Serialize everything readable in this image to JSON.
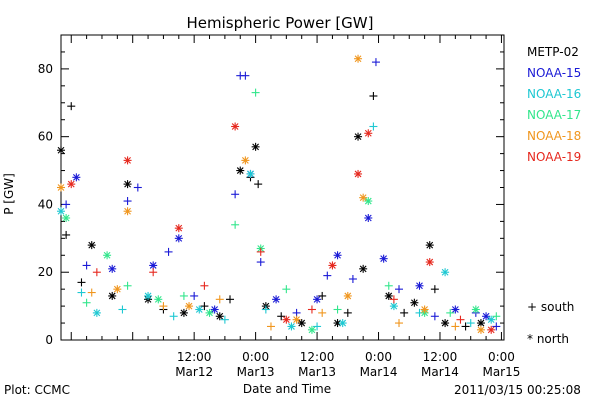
{
  "chart_data": {
    "type": "scatter",
    "title": "Hemispheric Power [GW]",
    "xlabel": "Date and Time",
    "ylabel": "P [GW]",
    "ylim": [
      0,
      90
    ],
    "xlim": [
      "2011-03-11 10:00",
      "2011-03-15 00:30"
    ],
    "yticks": [
      0,
      20,
      40,
      60,
      80
    ],
    "xticks": [
      {
        "time": "2011-03-12 12:00",
        "line1": "12:00",
        "line2": "Mar12"
      },
      {
        "time": "2011-03-13 00:00",
        "line1": "0:00",
        "line2": "Mar13"
      },
      {
        "time": "2011-03-13 12:00",
        "line1": "12:00",
        "line2": "Mar13"
      },
      {
        "time": "2011-03-14 00:00",
        "line1": "0:00",
        "line2": "Mar14"
      },
      {
        "time": "2011-03-14 12:00",
        "line1": "12:00",
        "line2": "Mar14"
      },
      {
        "time": "2011-03-15 00:00",
        "line1": "0:00",
        "line2": "Mar15"
      }
    ],
    "marker_legend": {
      "south": "+ south",
      "north": "* north"
    },
    "series": [
      {
        "name": "METP-02",
        "color": "#000000",
        "points": [
          {
            "t": "2011-03-11 10:00",
            "v": 56,
            "m": "north"
          },
          {
            "t": "2011-03-11 11:00",
            "v": 31,
            "m": "south"
          },
          {
            "t": "2011-03-11 12:00",
            "v": 69,
            "m": "south"
          },
          {
            "t": "2011-03-11 14:00",
            "v": 17,
            "m": "south"
          },
          {
            "t": "2011-03-11 16:00",
            "v": 28,
            "m": "north"
          },
          {
            "t": "2011-03-11 20:00",
            "v": 13,
            "m": "north"
          },
          {
            "t": "2011-03-11 23:00",
            "v": 46,
            "m": "north"
          },
          {
            "t": "2011-03-12 03:00",
            "v": 12,
            "m": "north"
          },
          {
            "t": "2011-03-12 06:00",
            "v": 9,
            "m": "south"
          },
          {
            "t": "2011-03-12 10:00",
            "v": 8,
            "m": "north"
          },
          {
            "t": "2011-03-12 14:00",
            "v": 10,
            "m": "south"
          },
          {
            "t": "2011-03-12 17:00",
            "v": 7,
            "m": "north"
          },
          {
            "t": "2011-03-12 19:00",
            "v": 12,
            "m": "south"
          },
          {
            "t": "2011-03-12 21:00",
            "v": 50,
            "m": "north"
          },
          {
            "t": "2011-03-12 23:00",
            "v": 48,
            "m": "south"
          },
          {
            "t": "2011-03-13 00:00",
            "v": 57,
            "m": "north"
          },
          {
            "t": "2011-03-13 00:30",
            "v": 46,
            "m": "south"
          },
          {
            "t": "2011-03-13 02:00",
            "v": 10,
            "m": "north"
          },
          {
            "t": "2011-03-13 05:00",
            "v": 7,
            "m": "south"
          },
          {
            "t": "2011-03-13 09:00",
            "v": 5,
            "m": "north"
          },
          {
            "t": "2011-03-13 13:00",
            "v": 13,
            "m": "south"
          },
          {
            "t": "2011-03-13 16:00",
            "v": 5,
            "m": "north"
          },
          {
            "t": "2011-03-13 18:00",
            "v": 8,
            "m": "south"
          },
          {
            "t": "2011-03-13 20:00",
            "v": 60,
            "m": "north"
          },
          {
            "t": "2011-03-13 21:00",
            "v": 21,
            "m": "north"
          },
          {
            "t": "2011-03-13 23:00",
            "v": 72,
            "m": "south"
          },
          {
            "t": "2011-03-14 02:00",
            "v": 13,
            "m": "north"
          },
          {
            "t": "2011-03-14 05:00",
            "v": 8,
            "m": "south"
          },
          {
            "t": "2011-03-14 07:00",
            "v": 11,
            "m": "north"
          },
          {
            "t": "2011-03-14 10:00",
            "v": 28,
            "m": "north"
          },
          {
            "t": "2011-03-14 11:00",
            "v": 15,
            "m": "south"
          },
          {
            "t": "2011-03-14 13:00",
            "v": 5,
            "m": "north"
          },
          {
            "t": "2011-03-14 17:00",
            "v": 4,
            "m": "south"
          },
          {
            "t": "2011-03-14 20:00",
            "v": 5,
            "m": "north"
          }
        ]
      },
      {
        "name": "NOAA-15",
        "color": "#1a1ad6",
        "points": [
          {
            "t": "2011-03-11 11:00",
            "v": 40,
            "m": "south"
          },
          {
            "t": "2011-03-11 13:00",
            "v": 48,
            "m": "north"
          },
          {
            "t": "2011-03-11 15:00",
            "v": 22,
            "m": "south"
          },
          {
            "t": "2011-03-11 20:00",
            "v": 21,
            "m": "north"
          },
          {
            "t": "2011-03-11 23:00",
            "v": 41,
            "m": "south"
          },
          {
            "t": "2011-03-12 01:00",
            "v": 45,
            "m": "south"
          },
          {
            "t": "2011-03-12 04:00",
            "v": 22,
            "m": "north"
          },
          {
            "t": "2011-03-12 07:00",
            "v": 26,
            "m": "south"
          },
          {
            "t": "2011-03-12 09:00",
            "v": 30,
            "m": "north"
          },
          {
            "t": "2011-03-12 12:00",
            "v": 13,
            "m": "south"
          },
          {
            "t": "2011-03-12 16:00",
            "v": 9,
            "m": "north"
          },
          {
            "t": "2011-03-12 20:00",
            "v": 43,
            "m": "south"
          },
          {
            "t": "2011-03-12 21:00",
            "v": 78,
            "m": "south"
          },
          {
            "t": "2011-03-12 22:00",
            "v": 78,
            "m": "south"
          },
          {
            "t": "2011-03-12 23:00",
            "v": 49,
            "m": "north"
          },
          {
            "t": "2011-03-13 01:00",
            "v": 23,
            "m": "south"
          },
          {
            "t": "2011-03-13 04:00",
            "v": 12,
            "m": "north"
          },
          {
            "t": "2011-03-13 08:00",
            "v": 8,
            "m": "south"
          },
          {
            "t": "2011-03-13 12:00",
            "v": 12,
            "m": "north"
          },
          {
            "t": "2011-03-13 14:00",
            "v": 19,
            "m": "south"
          },
          {
            "t": "2011-03-13 16:00",
            "v": 25,
            "m": "north"
          },
          {
            "t": "2011-03-13 19:00",
            "v": 18,
            "m": "south"
          },
          {
            "t": "2011-03-13 22:00",
            "v": 36,
            "m": "north"
          },
          {
            "t": "2011-03-13 23:30",
            "v": 82,
            "m": "south"
          },
          {
            "t": "2011-03-14 01:00",
            "v": 24,
            "m": "north"
          },
          {
            "t": "2011-03-14 04:00",
            "v": 15,
            "m": "south"
          },
          {
            "t": "2011-03-14 08:00",
            "v": 16,
            "m": "north"
          },
          {
            "t": "2011-03-14 11:00",
            "v": 7,
            "m": "south"
          },
          {
            "t": "2011-03-14 15:00",
            "v": 9,
            "m": "north"
          },
          {
            "t": "2011-03-14 19:00",
            "v": 8,
            "m": "south"
          },
          {
            "t": "2011-03-14 21:00",
            "v": 7,
            "m": "north"
          },
          {
            "t": "2011-03-14 23:00",
            "v": 4,
            "m": "south"
          }
        ]
      },
      {
        "name": "NOAA-16",
        "color": "#1ec8d2",
        "points": [
          {
            "t": "2011-03-11 10:00",
            "v": 38,
            "m": "north"
          },
          {
            "t": "2011-03-11 14:00",
            "v": 14,
            "m": "south"
          },
          {
            "t": "2011-03-11 17:00",
            "v": 8,
            "m": "north"
          },
          {
            "t": "2011-03-11 22:00",
            "v": 9,
            "m": "south"
          },
          {
            "t": "2011-03-12 03:00",
            "v": 13,
            "m": "north"
          },
          {
            "t": "2011-03-12 08:00",
            "v": 7,
            "m": "south"
          },
          {
            "t": "2011-03-12 13:00",
            "v": 9,
            "m": "north"
          },
          {
            "t": "2011-03-12 18:00",
            "v": 6,
            "m": "south"
          },
          {
            "t": "2011-03-12 23:00",
            "v": 49,
            "m": "north"
          },
          {
            "t": "2011-03-13 02:00",
            "v": 9,
            "m": "south"
          },
          {
            "t": "2011-03-13 07:00",
            "v": 4,
            "m": "north"
          },
          {
            "t": "2011-03-13 12:00",
            "v": 4,
            "m": "south"
          },
          {
            "t": "2011-03-13 17:00",
            "v": 5,
            "m": "north"
          },
          {
            "t": "2011-03-13 23:00",
            "v": 63,
            "m": "south"
          },
          {
            "t": "2011-03-14 03:00",
            "v": 10,
            "m": "north"
          },
          {
            "t": "2011-03-14 08:00",
            "v": 8,
            "m": "south"
          },
          {
            "t": "2011-03-14 13:00",
            "v": 20,
            "m": "north"
          },
          {
            "t": "2011-03-14 18:00",
            "v": 5,
            "m": "south"
          },
          {
            "t": "2011-03-14 22:00",
            "v": 6,
            "m": "north"
          }
        ]
      },
      {
        "name": "NOAA-17",
        "color": "#32e68c",
        "points": [
          {
            "t": "2011-03-11 11:00",
            "v": 36,
            "m": "north"
          },
          {
            "t": "2011-03-11 15:00",
            "v": 11,
            "m": "south"
          },
          {
            "t": "2011-03-11 19:00",
            "v": 25,
            "m": "north"
          },
          {
            "t": "2011-03-11 23:00",
            "v": 16,
            "m": "south"
          },
          {
            "t": "2011-03-12 05:00",
            "v": 12,
            "m": "north"
          },
          {
            "t": "2011-03-12 10:00",
            "v": 13,
            "m": "south"
          },
          {
            "t": "2011-03-12 15:00",
            "v": 8,
            "m": "north"
          },
          {
            "t": "2011-03-12 20:00",
            "v": 34,
            "m": "south"
          },
          {
            "t": "2011-03-13 00:00",
            "v": 73,
            "m": "south"
          },
          {
            "t": "2011-03-13 01:00",
            "v": 27,
            "m": "north"
          },
          {
            "t": "2011-03-13 06:00",
            "v": 15,
            "m": "south"
          },
          {
            "t": "2011-03-13 11:00",
            "v": 3,
            "m": "north"
          },
          {
            "t": "2011-03-13 16:00",
            "v": 9,
            "m": "south"
          },
          {
            "t": "2011-03-13 22:00",
            "v": 41,
            "m": "north"
          },
          {
            "t": "2011-03-14 02:00",
            "v": 16,
            "m": "south"
          },
          {
            "t": "2011-03-14 09:00",
            "v": 8,
            "m": "north"
          },
          {
            "t": "2011-03-14 14:00",
            "v": 8,
            "m": "south"
          },
          {
            "t": "2011-03-14 19:00",
            "v": 9,
            "m": "north"
          },
          {
            "t": "2011-03-14 23:00",
            "v": 7,
            "m": "south"
          }
        ]
      },
      {
        "name": "NOAA-18",
        "color": "#f0961e",
        "points": [
          {
            "t": "2011-03-11 10:00",
            "v": 45,
            "m": "north"
          },
          {
            "t": "2011-03-11 16:00",
            "v": 14,
            "m": "south"
          },
          {
            "t": "2011-03-11 21:00",
            "v": 15,
            "m": "north"
          },
          {
            "t": "2011-03-11 23:00",
            "v": 38,
            "m": "north"
          },
          {
            "t": "2011-03-12 06:00",
            "v": 10,
            "m": "south"
          },
          {
            "t": "2011-03-12 11:00",
            "v": 10,
            "m": "north"
          },
          {
            "t": "2011-03-12 17:00",
            "v": 12,
            "m": "south"
          },
          {
            "t": "2011-03-12 22:00",
            "v": 53,
            "m": "north"
          },
          {
            "t": "2011-03-13 03:00",
            "v": 4,
            "m": "south"
          },
          {
            "t": "2011-03-13 08:00",
            "v": 6,
            "m": "north"
          },
          {
            "t": "2011-03-13 13:00",
            "v": 8,
            "m": "south"
          },
          {
            "t": "2011-03-13 18:00",
            "v": 13,
            "m": "north"
          },
          {
            "t": "2011-03-13 20:00",
            "v": 83,
            "m": "north"
          },
          {
            "t": "2011-03-13 21:00",
            "v": 42,
            "m": "north"
          },
          {
            "t": "2011-03-14 04:00",
            "v": 5,
            "m": "south"
          },
          {
            "t": "2011-03-14 09:00",
            "v": 9,
            "m": "north"
          },
          {
            "t": "2011-03-14 15:00",
            "v": 4,
            "m": "south"
          },
          {
            "t": "2011-03-14 20:00",
            "v": 3,
            "m": "north"
          }
        ]
      },
      {
        "name": "NOAA-19",
        "color": "#e6281e",
        "points": [
          {
            "t": "2011-03-11 12:00",
            "v": 46,
            "m": "north"
          },
          {
            "t": "2011-03-11 17:00",
            "v": 20,
            "m": "south"
          },
          {
            "t": "2011-03-11 23:00",
            "v": 53,
            "m": "north"
          },
          {
            "t": "2011-03-12 04:00",
            "v": 20,
            "m": "south"
          },
          {
            "t": "2011-03-12 09:00",
            "v": 33,
            "m": "north"
          },
          {
            "t": "2011-03-12 14:00",
            "v": 16,
            "m": "south"
          },
          {
            "t": "2011-03-12 20:00",
            "v": 63,
            "m": "north"
          },
          {
            "t": "2011-03-13 01:00",
            "v": 26,
            "m": "south"
          },
          {
            "t": "2011-03-13 06:00",
            "v": 6,
            "m": "north"
          },
          {
            "t": "2011-03-13 11:00",
            "v": 9,
            "m": "south"
          },
          {
            "t": "2011-03-13 15:00",
            "v": 22,
            "m": "north"
          },
          {
            "t": "2011-03-13 20:00",
            "v": 49,
            "m": "north"
          },
          {
            "t": "2011-03-13 22:00",
            "v": 61,
            "m": "north"
          },
          {
            "t": "2011-03-14 03:00",
            "v": 12,
            "m": "south"
          },
          {
            "t": "2011-03-14 10:00",
            "v": 23,
            "m": "north"
          },
          {
            "t": "2011-03-14 16:00",
            "v": 6,
            "m": "south"
          },
          {
            "t": "2011-03-14 22:00",
            "v": 3,
            "m": "north"
          }
        ]
      }
    ]
  },
  "footer": {
    "plot_label": "Plot: CCMC",
    "timestamp": "2011/03/15 00:25:08"
  }
}
